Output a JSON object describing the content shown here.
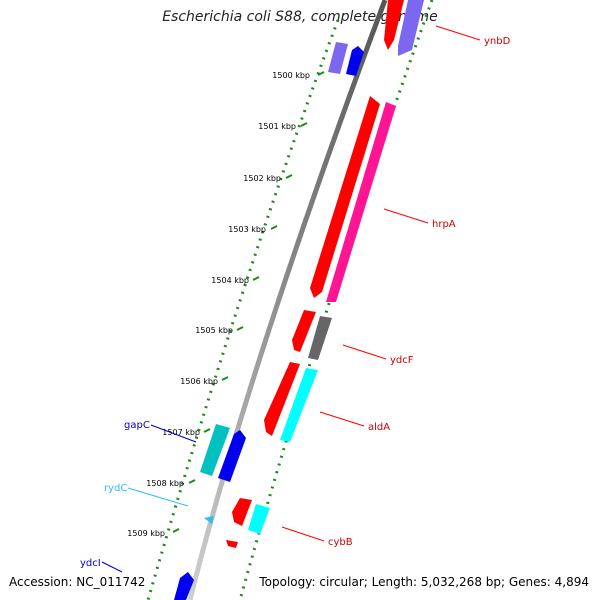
{
  "title": "Escherichia coli S88, complete genome",
  "footer": {
    "accession": "Accession: NC_011742",
    "summary": "Topology: circular; Length: 5,032,268 bp; Genes: 4,894"
  },
  "tick_unit": "kbp",
  "ticks": [
    1500,
    1501,
    1502,
    1503,
    1504,
    1505,
    1506,
    1507,
    1508,
    1509
  ],
  "colors": {
    "backbone": "#777777",
    "ring_dots": "#1a8a1a",
    "red": "#ff0000",
    "pink": "#ff1493",
    "gray": "#666666",
    "cyan": "#00ffff",
    "teal": "#00c0c0",
    "blue": "#0000ee",
    "light_blue": "#33bbee",
    "violet": "#7b68ee"
  },
  "gene_labels": [
    {
      "name": "ynbD",
      "color": "#cc0000"
    },
    {
      "name": "hrpA",
      "color": "#cc0000"
    },
    {
      "name": "ydcF",
      "color": "#cc0000"
    },
    {
      "name": "aldA",
      "color": "#cc0000"
    },
    {
      "name": "cybB",
      "color": "#cc0000"
    },
    {
      "name": "gapC",
      "color": "#0000cc"
    },
    {
      "name": "rydC",
      "color": "#33bbee"
    },
    {
      "name": "ydcI",
      "color": "#0000cc"
    }
  ]
}
